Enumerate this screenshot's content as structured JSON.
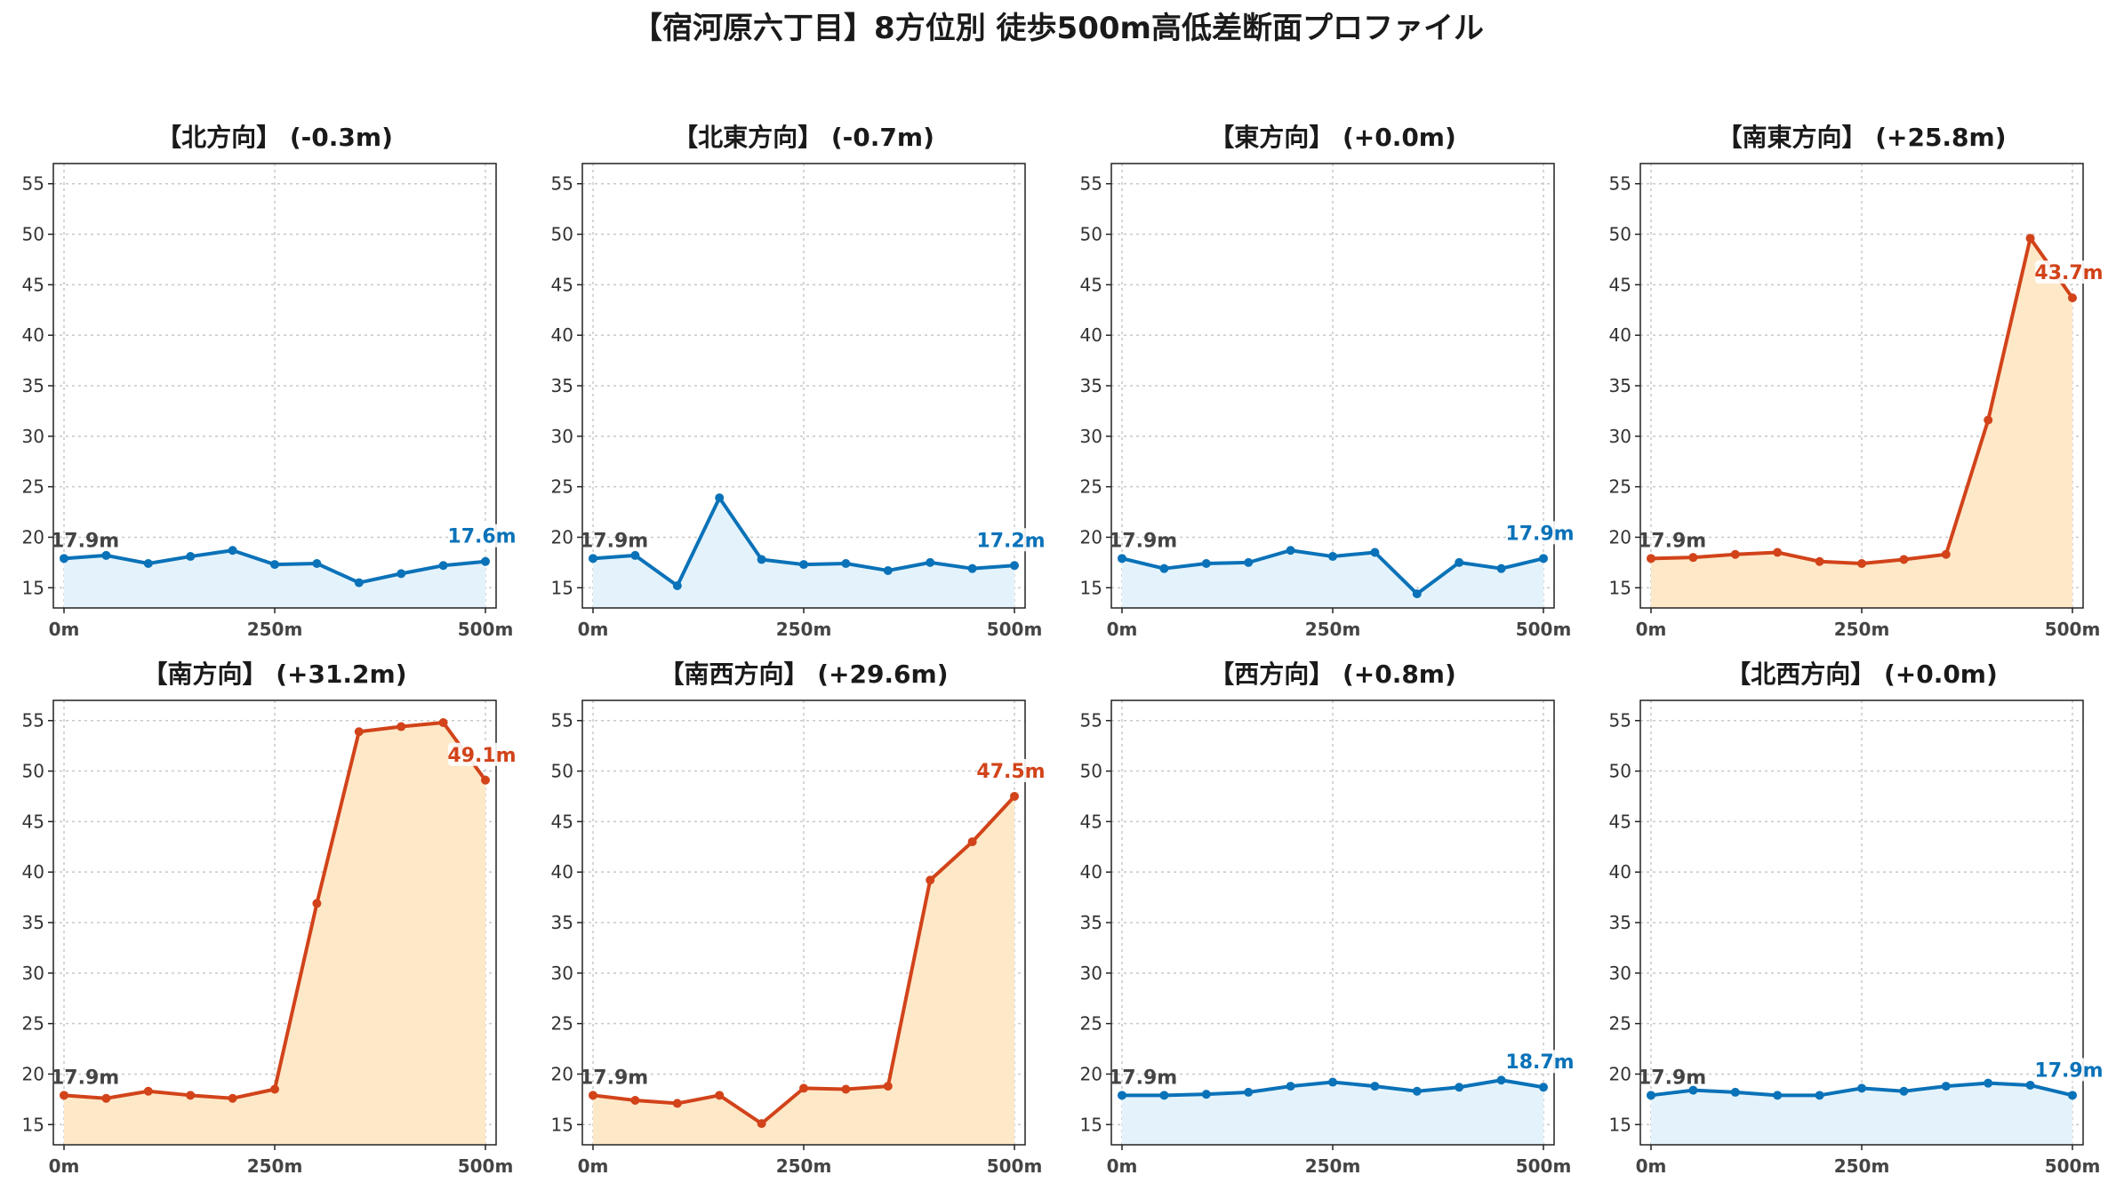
{
  "title": "【宿河原六丁目】8方位別 徒歩500m高低差断面プロファイル",
  "colors": {
    "flat_line": "#0a72b8",
    "flat_fill": "#e4f3fb",
    "steep_line": "#d2431a",
    "steep_fill": "#fde8c8",
    "start_label": "#444444"
  },
  "chart_data": [
    {
      "type": "line",
      "title": "【北方向】 (-0.3m)",
      "style": "flat",
      "x": [
        0,
        50,
        100,
        150,
        200,
        250,
        300,
        350,
        400,
        450,
        500
      ],
      "values": [
        17.9,
        18.2,
        17.4,
        18.1,
        18.7,
        17.3,
        17.4,
        15.5,
        16.4,
        17.2,
        17.6
      ],
      "start_label": "17.9m",
      "end_label": "17.6m",
      "ylim": [
        13,
        57
      ],
      "yticks": [
        "15",
        "20",
        "25",
        "30",
        "35",
        "40",
        "45",
        "50",
        "55"
      ],
      "xticks": [
        "0m",
        "250m",
        "500m"
      ],
      "grid": true
    },
    {
      "type": "line",
      "title": "【北東方向】 (-0.7m)",
      "style": "flat",
      "x": [
        0,
        50,
        100,
        150,
        200,
        250,
        300,
        350,
        400,
        450,
        500
      ],
      "values": [
        17.9,
        18.2,
        15.2,
        23.9,
        17.8,
        17.3,
        17.4,
        16.7,
        17.5,
        16.9,
        17.2
      ],
      "start_label": "17.9m",
      "end_label": "17.2m",
      "ylim": [
        13,
        57
      ],
      "yticks": [
        "15",
        "20",
        "25",
        "30",
        "35",
        "40",
        "45",
        "50",
        "55"
      ],
      "xticks": [
        "0m",
        "250m",
        "500m"
      ],
      "grid": true
    },
    {
      "type": "line",
      "title": "【東方向】 (+0.0m)",
      "style": "flat",
      "x": [
        0,
        50,
        100,
        150,
        200,
        250,
        300,
        350,
        400,
        450,
        500
      ],
      "values": [
        17.9,
        16.9,
        17.4,
        17.5,
        18.7,
        18.1,
        18.5,
        14.4,
        17.5,
        16.9,
        17.9
      ],
      "start_label": "17.9m",
      "end_label": "17.9m",
      "ylim": [
        13,
        57
      ],
      "yticks": [
        "15",
        "20",
        "25",
        "30",
        "35",
        "40",
        "45",
        "50",
        "55"
      ],
      "xticks": [
        "0m",
        "250m",
        "500m"
      ],
      "grid": true
    },
    {
      "type": "line",
      "title": "【南東方向】 (+25.8m)",
      "style": "steep",
      "x": [
        0,
        50,
        100,
        150,
        200,
        250,
        300,
        350,
        400,
        450,
        500
      ],
      "values": [
        17.9,
        18.0,
        18.3,
        18.5,
        17.6,
        17.4,
        17.8,
        18.3,
        31.6,
        49.6,
        43.7
      ],
      "start_label": "17.9m",
      "end_label": "43.7m",
      "ylim": [
        13,
        57
      ],
      "yticks": [
        "15",
        "20",
        "25",
        "30",
        "35",
        "40",
        "45",
        "50",
        "55"
      ],
      "xticks": [
        "0m",
        "250m",
        "500m"
      ],
      "grid": true
    },
    {
      "type": "line",
      "title": "【南方向】 (+31.2m)",
      "style": "steep",
      "x": [
        0,
        50,
        100,
        150,
        200,
        250,
        300,
        350,
        400,
        450,
        500
      ],
      "values": [
        17.9,
        17.6,
        18.3,
        17.9,
        17.6,
        18.5,
        36.9,
        53.9,
        54.4,
        54.8,
        49.1
      ],
      "start_label": "17.9m",
      "end_label": "49.1m",
      "ylim": [
        13,
        57
      ],
      "yticks": [
        "15",
        "20",
        "25",
        "30",
        "35",
        "40",
        "45",
        "50",
        "55"
      ],
      "xticks": [
        "0m",
        "250m",
        "500m"
      ],
      "grid": true
    },
    {
      "type": "line",
      "title": "【南西方向】 (+29.6m)",
      "style": "steep",
      "x": [
        0,
        50,
        100,
        150,
        200,
        250,
        300,
        350,
        400,
        450,
        500
      ],
      "values": [
        17.9,
        17.4,
        17.1,
        17.9,
        15.1,
        18.6,
        18.5,
        18.8,
        39.2,
        43.0,
        47.5
      ],
      "start_label": "17.9m",
      "end_label": "47.5m",
      "ylim": [
        13,
        57
      ],
      "yticks": [
        "15",
        "20",
        "25",
        "30",
        "35",
        "40",
        "45",
        "50",
        "55"
      ],
      "xticks": [
        "0m",
        "250m",
        "500m"
      ],
      "grid": true
    },
    {
      "type": "line",
      "title": "【西方向】 (+0.8m)",
      "style": "flat",
      "x": [
        0,
        50,
        100,
        150,
        200,
        250,
        300,
        350,
        400,
        450,
        500
      ],
      "values": [
        17.9,
        17.9,
        18.0,
        18.2,
        18.8,
        19.2,
        18.8,
        18.3,
        18.7,
        19.4,
        18.7
      ],
      "start_label": "17.9m",
      "end_label": "18.7m",
      "ylim": [
        13,
        57
      ],
      "yticks": [
        "15",
        "20",
        "25",
        "30",
        "35",
        "40",
        "45",
        "50",
        "55"
      ],
      "xticks": [
        "0m",
        "250m",
        "500m"
      ],
      "grid": true
    },
    {
      "type": "line",
      "title": "【北西方向】 (+0.0m)",
      "style": "flat",
      "x": [
        0,
        50,
        100,
        150,
        200,
        250,
        300,
        350,
        400,
        450,
        500
      ],
      "values": [
        17.9,
        18.4,
        18.2,
        17.9,
        17.9,
        18.6,
        18.3,
        18.8,
        19.1,
        18.9,
        17.9
      ],
      "start_label": "17.9m",
      "end_label": "17.9m",
      "ylim": [
        13,
        57
      ],
      "yticks": [
        "15",
        "20",
        "25",
        "30",
        "35",
        "40",
        "45",
        "50",
        "55"
      ],
      "xticks": [
        "0m",
        "250m",
        "500m"
      ],
      "grid": true
    }
  ]
}
